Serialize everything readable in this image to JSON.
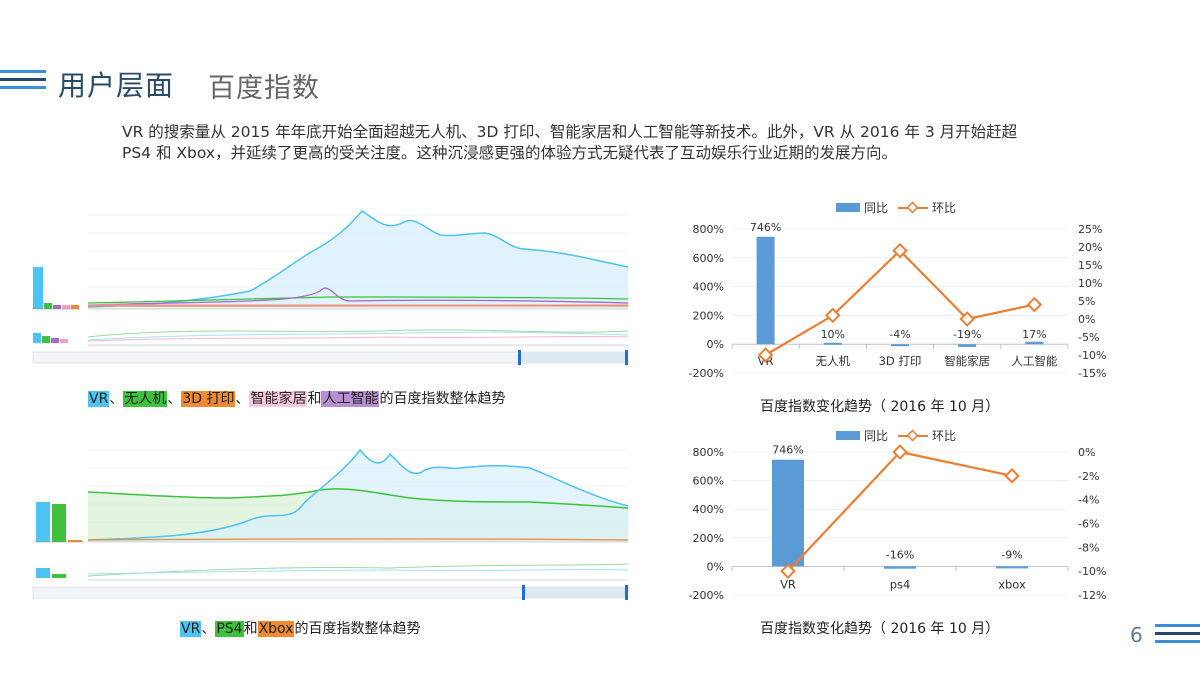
{
  "header": {
    "title": "用户层面",
    "subtitle": "百度指数",
    "line_colors": [
      "#3a8ed8",
      "#2a4a6a",
      "#3a8ed8"
    ]
  },
  "intro": "VR 的搜索量从 2015 年年底开始全面超越无人机、3D 打印、智能家居和人工智能等新技术。此外，VR 从 2016 年 3 月开始赶超 PS4 和 Xbox，并延续了更高的受关注度。这种沉浸感更强的体验方式无疑代表了互动娱乐行业近期的发展方向。",
  "trend1": {
    "caption": {
      "vr": "VR",
      "sep1": "、",
      "drone": "无人机",
      "sep2": "、",
      "print3d": "3D 打印",
      "sep3": "、",
      "smarthome": "智能家居",
      "and": "和",
      "ai": "人工智能",
      "suffix": "的百度指数整体趋势"
    },
    "colors": {
      "vr": "#4cc3f0",
      "drone": "#3ec23e",
      "print3d": "#f08a30",
      "smarthome": "#f0a0c8",
      "ai": "#a868c8"
    }
  },
  "trend2": {
    "caption": {
      "vr": "VR",
      "sep1": "、",
      "ps4": "PS4",
      "and": "和",
      "xbox": "Xbox",
      "suffix": "的百度指数整体趋势"
    },
    "colors": {
      "vr": "#4cc3f0",
      "ps4": "#3ec23e",
      "xbox": "#f08a30"
    }
  },
  "chart_caption_1": "百度指数变化趋势（ 2016 年 10 月）",
  "chart_caption_2": "百度指数变化趋势（ 2016 年 10 月）",
  "page_number": "6",
  "chart_data": [
    {
      "type": "bar",
      "categories": [
        "VR",
        "无人机",
        "3D 打印",
        "智能家居",
        "人工智能"
      ],
      "series": [
        {
          "name": "同比",
          "type": "bar",
          "axis": "left",
          "color": "#5b9bd5",
          "values": [
            746,
            10,
            -4,
            -19,
            17
          ],
          "labels": [
            "746%",
            "10%",
            "-4%",
            "-19%",
            "17%"
          ]
        },
        {
          "name": "环比",
          "type": "line",
          "axis": "right",
          "color": "#ed7d31",
          "values": [
            -10,
            1,
            19,
            0,
            4
          ]
        }
      ],
      "ylim_left": [
        -200,
        800
      ],
      "yticks_left": [
        "800%",
        "600%",
        "400%",
        "200%",
        "0%",
        "-200%"
      ],
      "ylim_right": [
        -15,
        25
      ],
      "yticks_right": [
        "25%",
        "20%",
        "15%",
        "10%",
        "5%",
        "0%",
        "-5%",
        "-10%",
        "-15%"
      ],
      "legend": "top"
    },
    {
      "type": "bar",
      "categories": [
        "VR",
        "ps4",
        "xbox"
      ],
      "series": [
        {
          "name": "同比",
          "type": "bar",
          "axis": "left",
          "color": "#5b9bd5",
          "values": [
            746,
            -16,
            -9
          ],
          "labels": [
            "746%",
            "-16%",
            "-9%"
          ]
        },
        {
          "name": "环比",
          "type": "line",
          "axis": "right",
          "color": "#ed7d31",
          "values": [
            -10,
            0,
            -2
          ]
        }
      ],
      "ylim_left": [
        -200,
        800
      ],
      "yticks_left": [
        "800%",
        "600%",
        "400%",
        "200%",
        "0%",
        "-200%"
      ],
      "ylim_right": [
        -12,
        0
      ],
      "yticks_right": [
        "0%",
        "-2%",
        "-4%",
        "-6%",
        "-8%",
        "-10%",
        "-12%"
      ],
      "legend": "top"
    }
  ]
}
